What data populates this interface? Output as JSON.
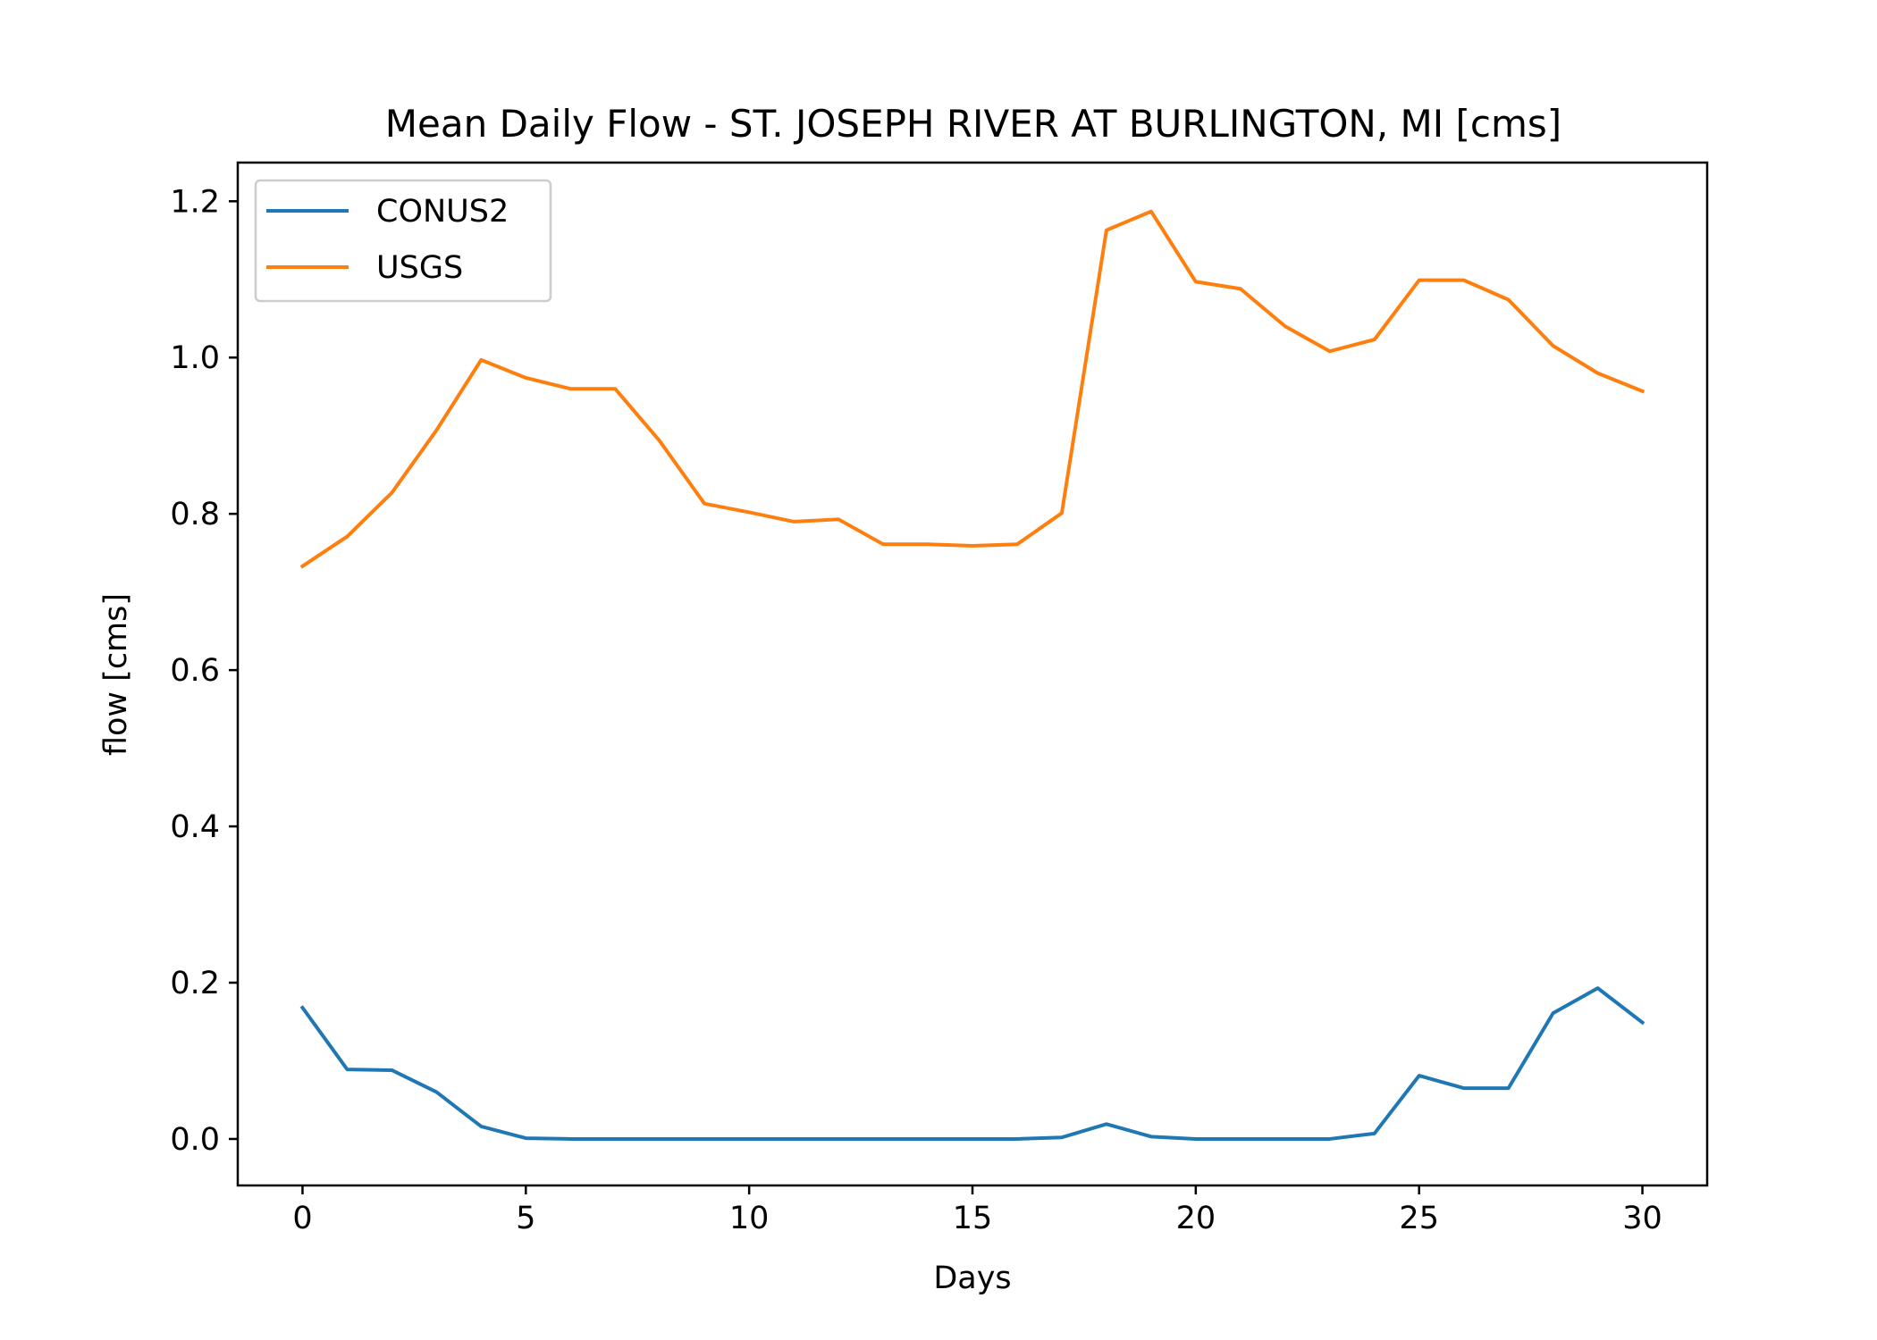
{
  "chart_data": {
    "type": "line",
    "title": "Mean Daily Flow - ST. JOSEPH RIVER AT BURLINGTON, MI [cms]",
    "xlabel": "Days",
    "ylabel": "flow [cms]",
    "xlim": [
      -1.45,
      31.45
    ],
    "ylim": [
      -0.0595,
      1.2495
    ],
    "xticks": [
      0,
      5,
      10,
      15,
      20,
      25,
      30
    ],
    "xtick_labels": [
      "0",
      "5",
      "10",
      "15",
      "20",
      "25",
      "30"
    ],
    "yticks": [
      0.0,
      0.2,
      0.4,
      0.6,
      0.8,
      1.0,
      1.2
    ],
    "ytick_labels": [
      "0.0",
      "0.2",
      "0.4",
      "0.6",
      "0.8",
      "1.0",
      "1.2"
    ],
    "grid": false,
    "legend_position": "top-left",
    "x": [
      0,
      1,
      2,
      3,
      4,
      5,
      6,
      7,
      8,
      9,
      10,
      11,
      12,
      13,
      14,
      15,
      16,
      17,
      18,
      19,
      20,
      21,
      22,
      23,
      24,
      25,
      26,
      27,
      28,
      29,
      30
    ],
    "series": [
      {
        "name": "CONUS2",
        "color": "#1f77b4",
        "values": [
          0.168,
          0.089,
          0.088,
          0.06,
          0.016,
          0.001,
          0.0,
          0.0,
          0.0,
          0.0,
          0.0,
          0.0,
          0.0,
          0.0,
          0.0,
          0.0,
          0.0,
          0.002,
          0.019,
          0.003,
          0.0,
          0.0,
          0.0,
          0.0,
          0.007,
          0.081,
          0.065,
          0.065,
          0.161,
          0.193,
          0.149
        ]
      },
      {
        "name": "USGS",
        "color": "#ff7f0e",
        "values": [
          0.733,
          0.771,
          0.827,
          0.907,
          0.997,
          0.974,
          0.96,
          0.96,
          0.893,
          0.813,
          0.802,
          0.79,
          0.793,
          0.761,
          0.761,
          0.759,
          0.761,
          0.801,
          1.163,
          1.187,
          1.097,
          1.088,
          1.04,
          1.008,
          1.023,
          1.099,
          1.099,
          1.074,
          1.015,
          0.98,
          0.957
        ]
      }
    ]
  }
}
